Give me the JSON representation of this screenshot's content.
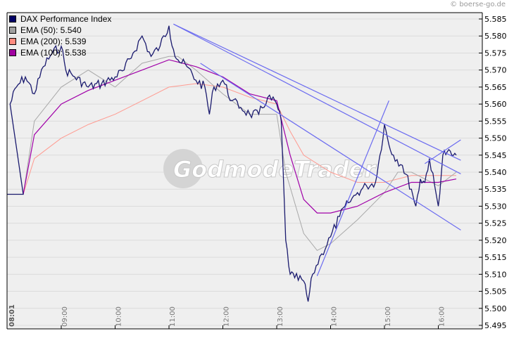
{
  "copyright": "© boerse-go.de",
  "watermark": "GodmodeTrader",
  "legend": [
    {
      "label": "DAX Performance Index",
      "color": "#000066"
    },
    {
      "label": "EMA (50): 5.540",
      "color": "#a0a0a0"
    },
    {
      "label": "EMA (200): 5.539",
      "color": "#ff8c80"
    },
    {
      "label": "EMA (100): 5.538",
      "color": "#a000a0"
    }
  ],
  "colors": {
    "price": "#1a1a6e",
    "ema50": "#a8a8a8",
    "ema200": "#ff9a90",
    "ema100": "#a000a8",
    "trendline": "#6b6bf0",
    "plot_bg": "#efefef",
    "grid": "#dcdcdc"
  },
  "chart_data": {
    "type": "line",
    "title": "DAX Performance Index",
    "xlabel": "",
    "ylabel": "",
    "ylim": [
      5.495,
      5.585
    ],
    "grid": true,
    "legend_position": "top-left",
    "y_ticks": [
      "5.585",
      "5.580",
      "5.575",
      "5.570",
      "5.565",
      "5.560",
      "5.555",
      "5.550",
      "5.545",
      "5.540",
      "5.535",
      "5.530",
      "5.525",
      "5.520",
      "5.515",
      "5.510",
      "5.505",
      "5.500",
      "5.495"
    ],
    "x_ticks": [
      "08:01",
      "09:00",
      "10:00",
      "11:00",
      "12:00",
      "13:00",
      "14:00",
      "15:00",
      "16:00"
    ],
    "series": [
      {
        "name": "DAX Performance Index",
        "x": [
          "07:50",
          "08:01",
          "08:03",
          "08:10",
          "08:20",
          "08:30",
          "08:40",
          "08:50",
          "09:00",
          "09:05",
          "09:15",
          "09:30",
          "09:45",
          "10:00",
          "10:10",
          "10:20",
          "10:30",
          "10:40",
          "10:50",
          "11:00",
          "11:05",
          "11:10",
          "11:20",
          "11:30",
          "11:40",
          "11:45",
          "11:50",
          "12:00",
          "12:10",
          "12:20",
          "12:30",
          "12:40",
          "12:50",
          "13:00",
          "13:05",
          "13:10",
          "13:15",
          "13:20",
          "13:30",
          "13:35",
          "13:40",
          "13:50",
          "14:00",
          "14:10",
          "14:20",
          "14:30",
          "14:40",
          "14:50",
          "14:55",
          "15:00",
          "15:05",
          "15:10",
          "15:20",
          "15:30",
          "15:35",
          "15:40",
          "15:45",
          "15:50",
          "16:00",
          "16:05",
          "16:10",
          "16:15",
          "16:20"
        ],
        "values": [
          5.5335,
          5.5335,
          5.56,
          5.565,
          5.568,
          5.563,
          5.571,
          5.575,
          5.577,
          5.57,
          5.568,
          5.565,
          5.566,
          5.568,
          5.57,
          5.575,
          5.58,
          5.574,
          5.577,
          5.583,
          5.576,
          5.573,
          5.571,
          5.567,
          5.565,
          5.557,
          5.565,
          5.567,
          5.561,
          5.559,
          5.557,
          5.557,
          5.562,
          5.56,
          5.555,
          5.52,
          5.51,
          5.509,
          5.508,
          5.502,
          5.51,
          5.516,
          5.521,
          5.527,
          5.531,
          5.534,
          5.536,
          5.537,
          5.545,
          5.554,
          5.548,
          5.545,
          5.542,
          5.535,
          5.53,
          5.538,
          5.537,
          5.544,
          5.53,
          5.545,
          5.546,
          5.545,
          5.545
        ]
      },
      {
        "name": "EMA (50)",
        "x": [
          "08:01",
          "08:30",
          "09:00",
          "09:30",
          "10:00",
          "10:30",
          "11:00",
          "11:10",
          "11:30",
          "12:00",
          "12:30",
          "13:00",
          "13:10",
          "13:30",
          "13:45",
          "14:00",
          "14:30",
          "15:00",
          "15:15",
          "15:30",
          "16:00",
          "16:20"
        ],
        "values": [
          5.5335,
          5.555,
          5.565,
          5.57,
          5.565,
          5.572,
          5.574,
          5.574,
          5.57,
          5.563,
          5.557,
          5.557,
          5.54,
          5.522,
          5.517,
          5.519,
          5.526,
          5.534,
          5.54,
          5.54,
          5.536,
          5.54
        ]
      },
      {
        "name": "EMA (200)",
        "x": [
          "08:01",
          "08:30",
          "09:00",
          "09:30",
          "10:00",
          "10:30",
          "11:00",
          "11:30",
          "12:00",
          "12:30",
          "13:00",
          "13:15",
          "13:30",
          "14:00",
          "14:30",
          "15:00",
          "15:30",
          "16:00",
          "16:20"
        ],
        "values": [
          5.5335,
          5.544,
          5.55,
          5.554,
          5.557,
          5.561,
          5.565,
          5.566,
          5.565,
          5.562,
          5.56,
          5.552,
          5.545,
          5.54,
          5.537,
          5.537,
          5.539,
          5.539,
          5.539
        ]
      },
      {
        "name": "EMA (100)",
        "x": [
          "08:01",
          "08:30",
          "09:00",
          "09:30",
          "10:00",
          "10:30",
          "11:00",
          "11:30",
          "12:00",
          "12:30",
          "13:00",
          "13:15",
          "13:30",
          "13:45",
          "14:00",
          "14:30",
          "15:00",
          "15:30",
          "16:00",
          "16:20"
        ],
        "values": [
          5.5335,
          5.551,
          5.56,
          5.564,
          5.567,
          5.57,
          5.573,
          5.571,
          5.568,
          5.563,
          5.561,
          5.545,
          5.532,
          5.528,
          5.528,
          5.53,
          5.534,
          5.537,
          5.537,
          5.538
        ]
      }
    ],
    "trendlines": [
      {
        "from": [
          "11:05",
          5.5835
        ],
        "to": [
          "16:25",
          5.5435
        ]
      },
      {
        "from": [
          "11:05",
          5.5835
        ],
        "to": [
          "16:25",
          5.5395
        ]
      },
      {
        "from": [
          "11:35",
          5.572
        ],
        "to": [
          "16:25",
          5.523
        ]
      },
      {
        "from": [
          "13:45",
          5.5095
        ],
        "to": [
          "15:05",
          5.561
        ]
      },
      {
        "from": [
          "15:45",
          5.5425
        ],
        "to": [
          "16:25",
          5.5495
        ]
      }
    ]
  }
}
